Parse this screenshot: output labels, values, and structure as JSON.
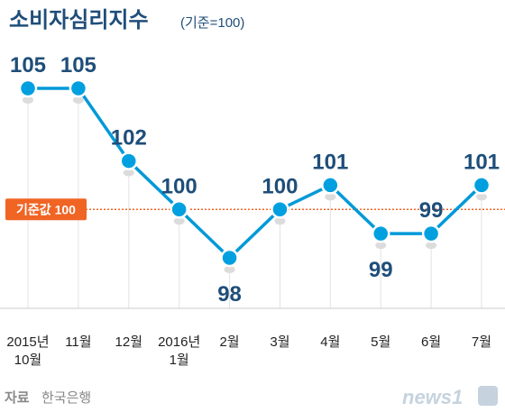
{
  "chart_data": {
    "type": "line",
    "title": "소비자심리지수",
    "subtitle": "(기준=100)",
    "categories": [
      [
        "2015년",
        "10월"
      ],
      [
        "11월"
      ],
      [
        "12월"
      ],
      [
        "2016년",
        "1월"
      ],
      [
        "2월"
      ],
      [
        "3월"
      ],
      [
        "4월"
      ],
      [
        "5월"
      ],
      [
        "6월"
      ],
      [
        "7월"
      ]
    ],
    "values": [
      105,
      105,
      102,
      100,
      98,
      100,
      101,
      99,
      99,
      101
    ],
    "ylim": [
      97,
      106
    ],
    "reference": {
      "value": 100,
      "label": "기준값 100"
    },
    "source": {
      "label": "자료",
      "value": "한국은행"
    },
    "logo": "news1",
    "colors": {
      "line": "#0099d8",
      "point": "#00a0e0",
      "label": "#1f4e79",
      "reference": "#f06424",
      "grid": "#e3e3e3"
    }
  }
}
